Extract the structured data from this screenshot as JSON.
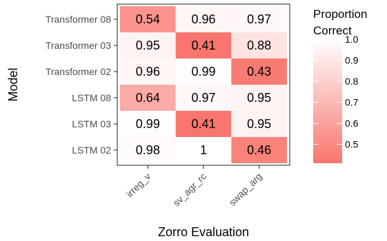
{
  "chart_data": {
    "type": "heatmap",
    "xlabel": "Zorro Evaluation",
    "ylabel": "Model",
    "x_categories": [
      "irreg_v",
      "sv_agr_rc",
      "swap_arg"
    ],
    "y_categories": [
      "Transformer 08",
      "Transformer 03",
      "Transformer 02",
      "LSTM 08",
      "LSTM 03",
      "LSTM 02"
    ],
    "values": [
      [
        0.54,
        0.96,
        0.97
      ],
      [
        0.95,
        0.41,
        0.88
      ],
      [
        0.96,
        0.99,
        0.43
      ],
      [
        0.64,
        0.97,
        0.95
      ],
      [
        0.99,
        0.41,
        0.95
      ],
      [
        0.98,
        1,
        0.46
      ]
    ],
    "cell_labels": [
      [
        "0.54",
        "0.96",
        "0.97"
      ],
      [
        "0.95",
        "0.41",
        "0.88"
      ],
      [
        "0.96",
        "0.99",
        "0.43"
      ],
      [
        "0.64",
        "0.97",
        "0.95"
      ],
      [
        "0.99",
        "0.41",
        "0.95"
      ],
      [
        "0.98",
        "1",
        "0.46"
      ]
    ],
    "legend": {
      "title_lines": [
        "Proportion",
        "Correct"
      ],
      "ticks": [
        "1.0",
        "0.9",
        "0.8",
        "0.7",
        "0.6",
        "0.5"
      ],
      "tick_values": [
        1.0,
        0.9,
        0.8,
        0.7,
        0.6,
        0.5
      ],
      "range": [
        0.41,
        1.0
      ],
      "placement": "right"
    },
    "colors": {
      "low": "#f8766d",
      "high": "#ffffff"
    }
  }
}
